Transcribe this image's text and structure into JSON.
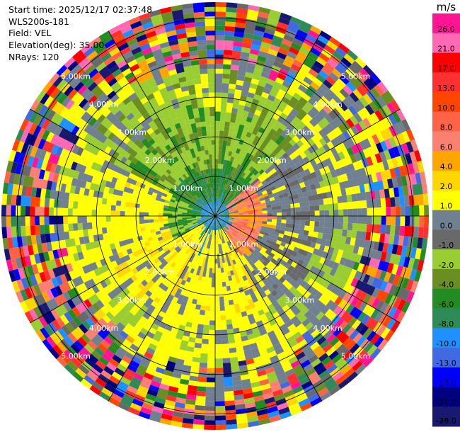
{
  "info": {
    "start_time": "Start time: 2025/12/17 02:37:48",
    "site": "WLS200s-181",
    "field": "Field: VEL",
    "elevation": "Elevation(deg): 35.00",
    "nrays": "NRays: 120"
  },
  "chart_data": {
    "type": "ppi-radar",
    "field": "VEL",
    "nrays": 120,
    "elevation_deg": 35.0,
    "max_range_km": 5.4,
    "range_rings_km": [
      1,
      2,
      3,
      4,
      5
    ],
    "range_ring_labels": [
      "1.00km",
      "2.00km",
      "3.00km",
      "4.00km",
      "5.00km"
    ],
    "colorbar": {
      "unit": "m/s",
      "ticks": [
        "26.0",
        "21.0",
        "17.0",
        "13.0",
        "10.0",
        "8.0",
        "6.0",
        "4.0",
        "2.0",
        "1.0",
        "0.0",
        "-1.0",
        "-2.0",
        "-4.0",
        "-6.0",
        "-8.0",
        "-10.0",
        "-13.0",
        "-17.0",
        "-21.0",
        "-26.0",
        "-30.0"
      ],
      "colors": [
        "#ff1493",
        "#ff69b4",
        "#ff0000",
        "#ff3030",
        "#ff4500",
        "#ff6347",
        "#fa8072",
        "#ffa500",
        "#ffd700",
        "#ffff00",
        "#708090",
        "#696969",
        "#9acd32",
        "#6b8e23",
        "#228b22",
        "#2e8b57",
        "#1e90ff",
        "#4169e1",
        "#0000ff",
        "#000080",
        "#191970"
      ]
    }
  }
}
